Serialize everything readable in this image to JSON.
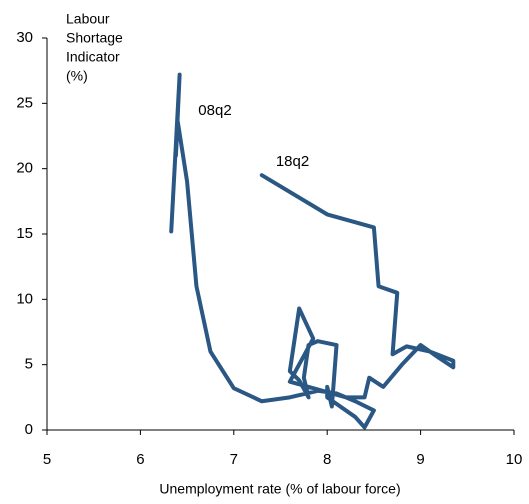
{
  "chart_data": {
    "type": "line",
    "x_label": "Unemployment rate (% of labour force)",
    "y_label": [
      "Labour",
      "Shortage",
      "Indicator",
      "(%)"
    ],
    "annotations": [
      {
        "text": "08q2",
        "x": 6.62,
        "y": 24.4
      },
      {
        "text": "18q2",
        "x": 7.45,
        "y": 20.5
      }
    ],
    "series": [
      {
        "color": "#2a5783",
        "x": [
          6.33,
          6.42,
          6.38,
          6.4,
          6.5,
          6.6,
          6.75,
          7.0,
          7.3,
          7.6,
          7.9,
          8.1,
          8.3,
          8.5,
          8.4,
          8.3,
          8.0,
          8.0,
          8.05,
          8.1,
          7.9,
          7.8,
          7.75,
          7.8,
          7.7,
          7.6,
          7.7,
          7.85,
          7.6,
          8.2,
          8.4,
          8.45,
          8.6,
          8.8,
          9.0,
          9.2,
          9.35,
          9.35,
          9.1,
          8.85,
          8.7,
          8.75,
          8.55,
          8.5,
          8.0,
          7.3
        ],
        "values": [
          15.2,
          27.2,
          21,
          23.6,
          19,
          11,
          6,
          3.2,
          2.2,
          2.5,
          3,
          2.8,
          2.2,
          1.5,
          0.2,
          1,
          2.5,
          3.3,
          1.8,
          6.5,
          6.8,
          6.5,
          4,
          2.5,
          3.8,
          4.5,
          9.3,
          7,
          3.7,
          2.5,
          2.5,
          4,
          3.3,
          5,
          6.5,
          5.5,
          4.8,
          5.3,
          6,
          6.4,
          5.8,
          10.5,
          11,
          15.5,
          16.5,
          19.5
        ]
      }
    ],
    "xlim": [
      5,
      10
    ],
    "xticks": [
      5,
      6,
      7,
      8,
      9,
      10
    ],
    "ylim": [
      0,
      30
    ],
    "yticks": [
      0,
      5,
      10,
      15,
      20,
      25,
      30
    ]
  }
}
